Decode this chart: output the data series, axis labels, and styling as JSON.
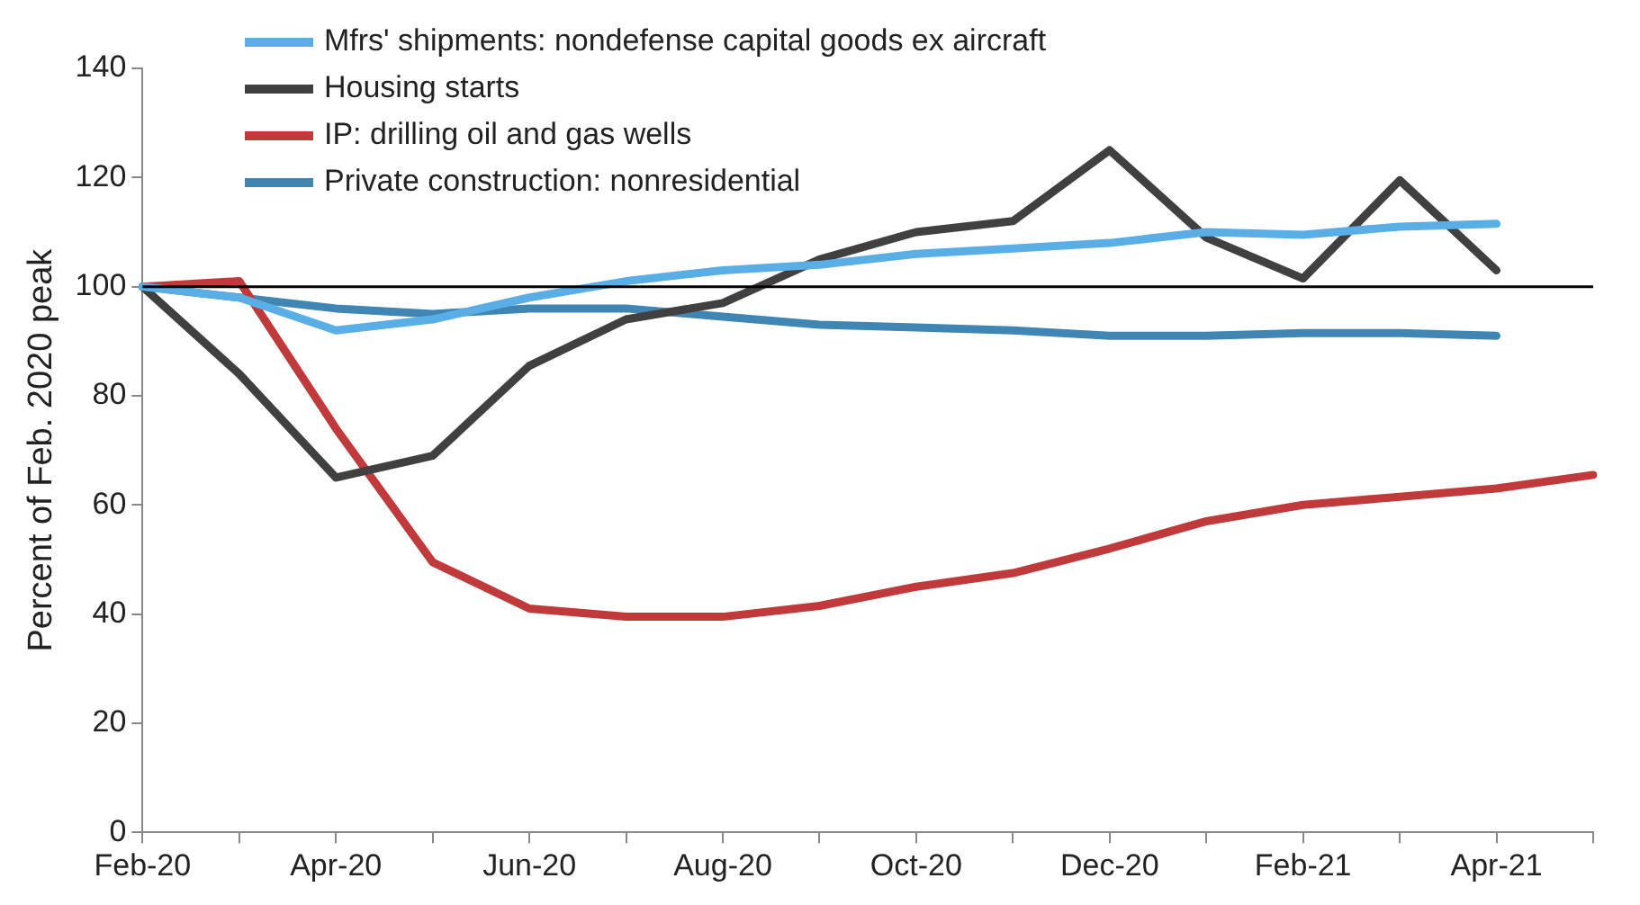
{
  "chart_data": {
    "type": "line",
    "ylabel": "Percent of Feb. 2020 peak",
    "categories": [
      "Feb-20",
      null,
      "Apr-20",
      null,
      "Jun-20",
      null,
      "Aug-20",
      null,
      "Oct-20",
      null,
      "Dec-20",
      null,
      "Feb-21",
      null,
      "Apr-21",
      null
    ],
    "series": [
      {
        "name": "Mfrs' shipments: nondefense capital goods ex aircraft",
        "color": "#5aaee6",
        "values": [
          100,
          98,
          92,
          94,
          98,
          101,
          103,
          104,
          106,
          107,
          108,
          110,
          109.5,
          111,
          111.5,
          null
        ]
      },
      {
        "name": "Housing starts",
        "color": "#404040",
        "values": [
          100,
          84,
          65,
          69,
          85.5,
          94,
          97,
          105,
          110,
          112,
          125,
          109,
          101.5,
          119.5,
          103,
          null
        ]
      },
      {
        "name": "IP: drilling oil and gas wells",
        "color": "#c0393b",
        "values": [
          100,
          101,
          74,
          49.5,
          41,
          39.5,
          39.5,
          41.5,
          45,
          47.5,
          52,
          57,
          60,
          61.5,
          63,
          65.5
        ]
      },
      {
        "name": "Private construction: nonresidential",
        "color": "#3f86b4",
        "values": [
          100,
          98,
          96,
          95,
          96,
          96,
          94.5,
          93,
          92.5,
          92,
          91,
          91,
          91.5,
          91.5,
          91,
          null
        ]
      }
    ],
    "ylim": [
      0,
      140
    ],
    "yticks": [
      0,
      20,
      40,
      60,
      80,
      100,
      120,
      140
    ],
    "grid": false,
    "legend": "top left",
    "marker": "none",
    "line_style": "solid",
    "ref_lines": [
      {
        "axis": "y",
        "value": 100,
        "color": "#000000"
      }
    ]
  }
}
